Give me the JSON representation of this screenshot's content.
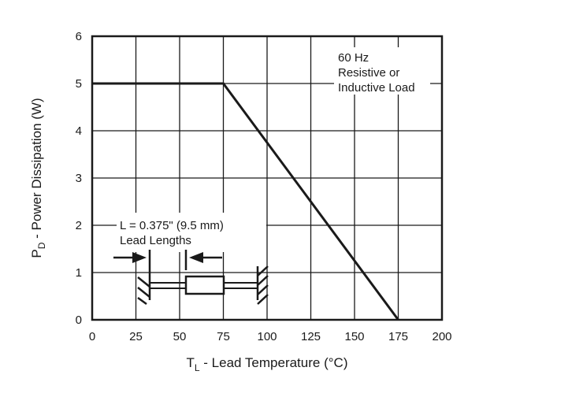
{
  "chart_data": {
    "type": "line",
    "title": "",
    "xlabel": {
      "main": "T",
      "sub": "L",
      "rest": " - Lead Temperature (°C)"
    },
    "ylabel": {
      "main": "P",
      "sub": "D",
      "rest": " - Power Dissipation (W)"
    },
    "xlim": [
      0,
      200
    ],
    "ylim": [
      0,
      6
    ],
    "xticks": [
      0,
      25,
      50,
      75,
      100,
      125,
      150,
      175,
      200
    ],
    "yticks": [
      0,
      1,
      2,
      3,
      4,
      5,
      6
    ],
    "grid": true,
    "series": [
      {
        "x": [
          0,
          75,
          175
        ],
        "y": [
          5,
          5,
          0
        ]
      }
    ],
    "annotations": {
      "condition": [
        "60 Hz",
        "Resistive or",
        "Inductive Load"
      ],
      "lead": [
        "L = 0.375\" (9.5 mm)",
        "Lead Lengths"
      ]
    },
    "colors": {
      "line": "#1a1a1a",
      "grid": "#1a1a1a"
    }
  }
}
